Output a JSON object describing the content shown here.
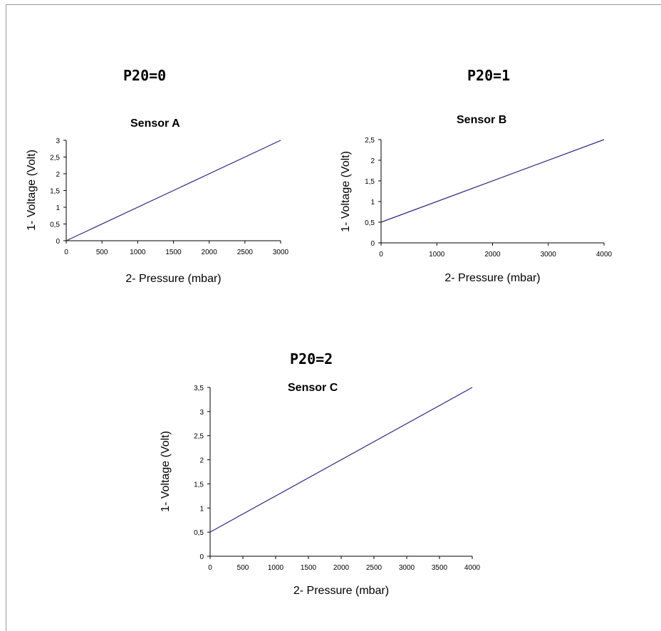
{
  "headings": [
    "P20=0",
    "P20=1",
    "P20=2"
  ],
  "chart_data": [
    {
      "type": "line",
      "title": "Sensor A",
      "xlabel": "2- Pressure (mbar)",
      "ylabel": "1- Voltage (Volt)",
      "x_ticks": [
        "0",
        "500",
        "1000",
        "1500",
        "2000",
        "2500",
        "3000"
      ],
      "y_ticks": [
        "0",
        "0,5",
        "1",
        "1,5",
        "2",
        "2,5",
        "3"
      ],
      "xlim": [
        0,
        3000
      ],
      "ylim": [
        0,
        3
      ],
      "series": [
        {
          "x": [
            0,
            3000
          ],
          "y": [
            0,
            3
          ],
          "color": "#2b2b7f"
        }
      ],
      "grid": false
    },
    {
      "type": "line",
      "title": "Sensor B",
      "xlabel": "2- Pressure (mbar)",
      "ylabel": "1- Voltage (Volt)",
      "x_ticks": [
        "0",
        "1000",
        "2000",
        "3000",
        "4000"
      ],
      "y_ticks": [
        "0",
        "0,5",
        "1",
        "1,5",
        "2",
        "2,5"
      ],
      "xlim": [
        0,
        4000
      ],
      "ylim": [
        0,
        2.5
      ],
      "series": [
        {
          "x": [
            0,
            4000
          ],
          "y": [
            0.5,
            2.5
          ],
          "color": "#2b2b7f"
        }
      ],
      "grid": false
    },
    {
      "type": "line",
      "title": "Sensor C",
      "xlabel": "2- Pressure (mbar)",
      "ylabel": "1- Voltage (Volt)",
      "x_ticks": [
        "0",
        "500",
        "1000",
        "1500",
        "2000",
        "2500",
        "3000",
        "3500",
        "4000"
      ],
      "y_ticks": [
        "0",
        "0,5",
        "1",
        "1,5",
        "2",
        "2,5",
        "3",
        "3,5"
      ],
      "xlim": [
        0,
        4000
      ],
      "ylim": [
        0,
        3.5
      ],
      "series": [
        {
          "x": [
            0,
            4000
          ],
          "y": [
            0.5,
            3.5
          ],
          "color": "#2b2b7f"
        }
      ],
      "grid": false
    }
  ]
}
